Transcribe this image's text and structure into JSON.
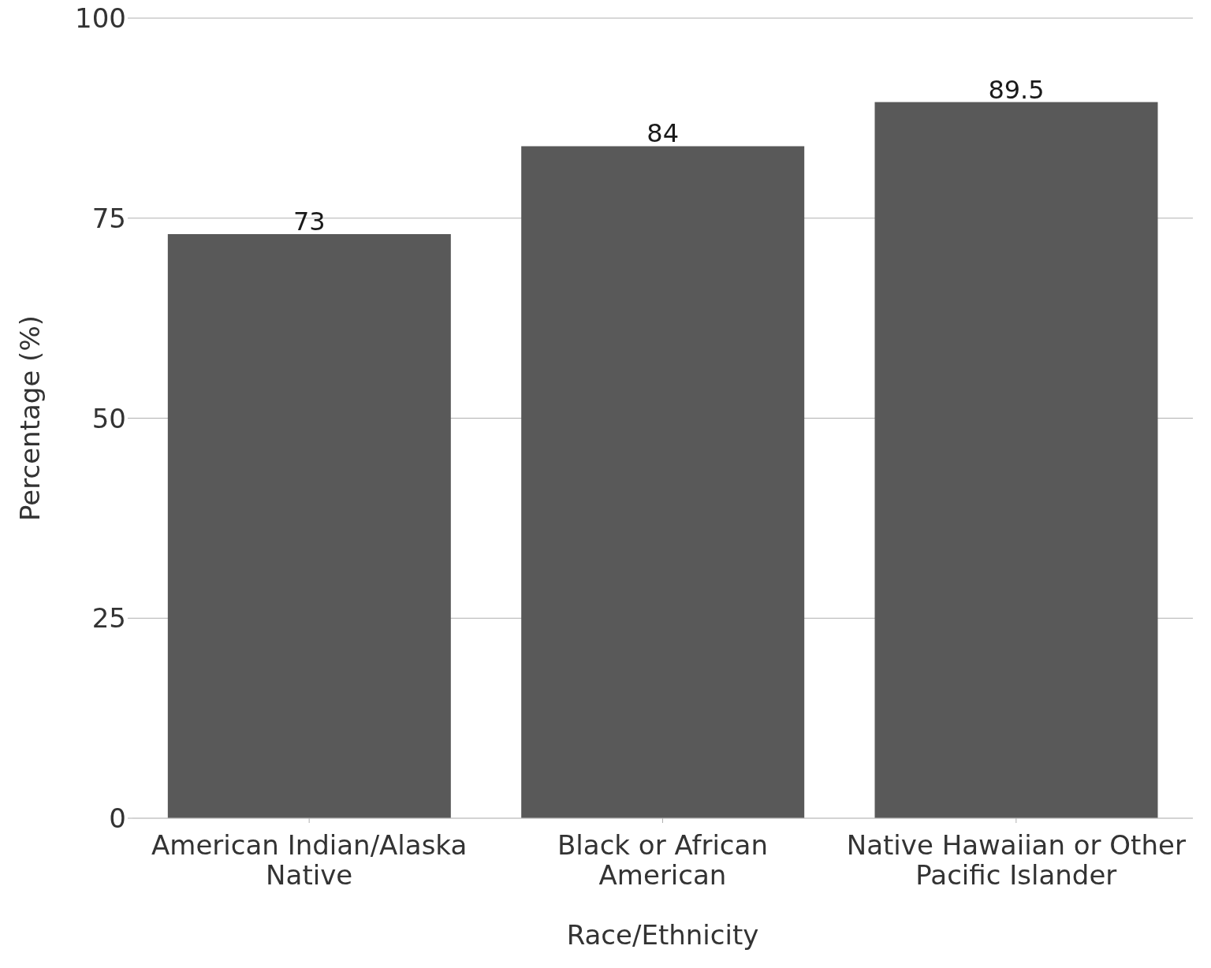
{
  "chart_data": {
    "type": "bar",
    "xlabel": "Race/Ethnicity",
    "ylabel": "Percentage (%)",
    "categories": [
      "American Indian/Alaska Native",
      "Black or African American",
      "Native Hawaiian or Other Pacific Islander"
    ],
    "values": [
      73,
      84,
      89.5
    ],
    "color": "#595959",
    "ylim": [
      0,
      100
    ],
    "yticks": [
      0,
      25,
      50,
      75,
      100
    ],
    "grid": "y",
    "data_labels": true
  }
}
